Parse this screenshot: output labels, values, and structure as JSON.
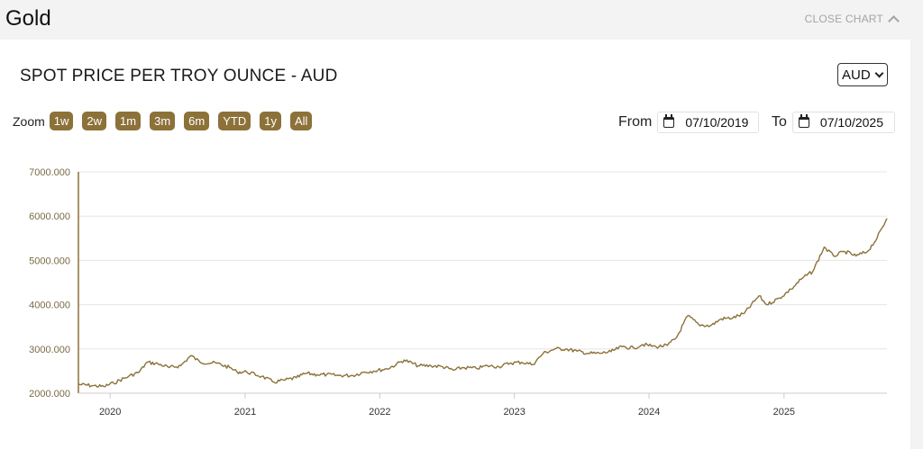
{
  "header": {
    "title": "Gold",
    "close_label": "CLOSE CHART"
  },
  "panel": {
    "subtitle": "SPOT PRICE PER TROY OUNCE - AUD",
    "currency": "AUD",
    "zoom_label": "Zoom",
    "zoom_buttons": [
      "1w",
      "2w",
      "1m",
      "3m",
      "6m",
      "YTD",
      "1y",
      "All"
    ],
    "from_label": "From",
    "from_date": "07/10/2019",
    "to_label": "To",
    "to_date": "07/10/2025"
  },
  "colors": {
    "line": "#8c7139",
    "button": "#8c7139",
    "grid": "#e6e6e6"
  },
  "chart_data": {
    "type": "line",
    "title": "",
    "xlabel": "",
    "ylabel": "",
    "xlim": [
      "2019-10-07",
      "2025-10-07"
    ],
    "ylim": [
      2000,
      7000
    ],
    "y_ticks": [
      2000,
      3000,
      4000,
      5000,
      6000,
      7000
    ],
    "y_tick_labels": [
      "2000.000",
      "3000.000",
      "4000.000",
      "5000.000",
      "6000.000",
      "7000.000"
    ],
    "x_tick_labels": [
      "2020",
      "2021",
      "2022",
      "2023",
      "2024",
      "2025"
    ],
    "x_ticks": [
      "2020-01-01",
      "2021-01-01",
      "2022-01-01",
      "2023-01-01",
      "2024-01-01",
      "2025-01-01"
    ],
    "grid": true,
    "series": [
      {
        "points": [
          [
            "2019-10-07",
            2200
          ],
          [
            "2019-11-15",
            2170
          ],
          [
            "2019-12-15",
            2150
          ],
          [
            "2020-01-10",
            2230
          ],
          [
            "2020-02-20",
            2380
          ],
          [
            "2020-03-20",
            2480
          ],
          [
            "2020-04-10",
            2700
          ],
          [
            "2020-05-10",
            2660
          ],
          [
            "2020-06-10",
            2580
          ],
          [
            "2020-07-10",
            2620
          ],
          [
            "2020-08-07",
            2850
          ],
          [
            "2020-09-01",
            2700
          ],
          [
            "2020-10-15",
            2680
          ],
          [
            "2020-11-20",
            2580
          ],
          [
            "2020-12-10",
            2480
          ],
          [
            "2021-01-05",
            2480
          ],
          [
            "2021-02-15",
            2380
          ],
          [
            "2021-03-20",
            2250
          ],
          [
            "2021-04-20",
            2300
          ],
          [
            "2021-05-20",
            2350
          ],
          [
            "2021-06-15",
            2450
          ],
          [
            "2021-07-15",
            2420
          ],
          [
            "2021-08-10",
            2420
          ],
          [
            "2021-09-10",
            2400
          ],
          [
            "2021-10-20",
            2400
          ],
          [
            "2021-11-20",
            2480
          ],
          [
            "2021-12-15",
            2500
          ],
          [
            "2022-01-20",
            2550
          ],
          [
            "2022-02-15",
            2650
          ],
          [
            "2022-03-08",
            2750
          ],
          [
            "2022-04-15",
            2620
          ],
          [
            "2022-05-20",
            2620
          ],
          [
            "2022-06-20",
            2600
          ],
          [
            "2022-07-20",
            2520
          ],
          [
            "2022-08-15",
            2580
          ],
          [
            "2022-09-20",
            2560
          ],
          [
            "2022-10-20",
            2620
          ],
          [
            "2022-11-20",
            2600
          ],
          [
            "2022-12-20",
            2680
          ],
          [
            "2023-01-20",
            2700
          ],
          [
            "2023-02-20",
            2650
          ],
          [
            "2023-03-20",
            2900
          ],
          [
            "2023-04-20",
            3000
          ],
          [
            "2023-05-20",
            3000
          ],
          [
            "2023-06-20",
            2950
          ],
          [
            "2023-07-20",
            2900
          ],
          [
            "2023-08-20",
            2900
          ],
          [
            "2023-09-20",
            2940
          ],
          [
            "2023-10-20",
            3050
          ],
          [
            "2023-11-20",
            3020
          ],
          [
            "2023-12-15",
            3100
          ],
          [
            "2024-01-20",
            3050
          ],
          [
            "2024-02-20",
            3080
          ],
          [
            "2024-03-15",
            3250
          ],
          [
            "2024-04-15",
            3750
          ],
          [
            "2024-05-15",
            3550
          ],
          [
            "2024-06-15",
            3520
          ],
          [
            "2024-07-15",
            3680
          ],
          [
            "2024-08-15",
            3700
          ],
          [
            "2024-09-15",
            3800
          ],
          [
            "2024-10-25",
            4200
          ],
          [
            "2024-11-15",
            4000
          ],
          [
            "2024-12-20",
            4150
          ],
          [
            "2025-01-20",
            4350
          ],
          [
            "2025-02-20",
            4600
          ],
          [
            "2025-03-20",
            4750
          ],
          [
            "2025-04-20",
            5300
          ],
          [
            "2025-05-15",
            5100
          ],
          [
            "2025-06-15",
            5200
          ],
          [
            "2025-07-15",
            5100
          ],
          [
            "2025-08-15",
            5200
          ],
          [
            "2025-09-10",
            5500
          ],
          [
            "2025-10-07",
            5950
          ]
        ]
      }
    ]
  }
}
